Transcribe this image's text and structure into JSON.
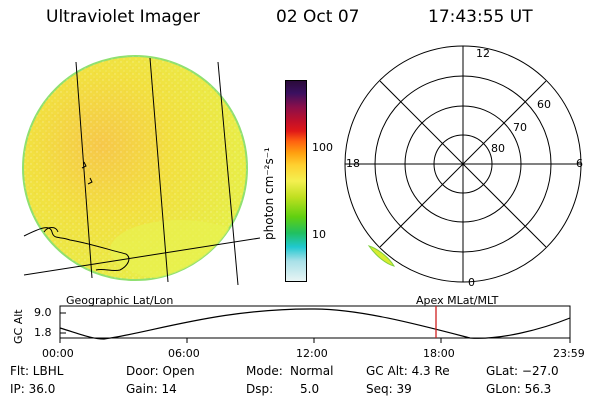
{
  "header": {
    "instrument": "Ultraviolet Imager",
    "date": "02 Oct 07",
    "time": "17:43:55 UT"
  },
  "left_panel": {
    "caption": "Geographic Lat/Lon"
  },
  "colorbar": {
    "unit_label": "photon cm⁻²s⁻¹",
    "ticks": [
      "100",
      "10"
    ],
    "colors": [
      "#2a0a3a",
      "#2a1050",
      "#6a0f4a",
      "#b0102a",
      "#e01010",
      "#ff6010",
      "#ff9a10",
      "#ffd030",
      "#f0f050",
      "#b0e020",
      "#60d010",
      "#20c060",
      "#20c8d0",
      "#a0e0e8",
      "#e0f0f0"
    ]
  },
  "polar_panel": {
    "caption": "Apex  MLat/MLT",
    "mlt_labels": {
      "top": "12",
      "left": "18",
      "right": "6",
      "bottom": "0"
    },
    "lat_labels": [
      "60",
      "70",
      "80"
    ]
  },
  "altitude_plot": {
    "ylabel": "GC Alt",
    "yticks": [
      "9.0",
      "1.8"
    ],
    "xticks": [
      "00:00",
      "06:00",
      "12:00",
      "18:00",
      "23:59"
    ],
    "marker_color": "#d02020"
  },
  "status": {
    "row1": {
      "filter": "Flt: LBHL",
      "door": "Door: Open",
      "mode_label": "Mode:",
      "mode_value": "Normal",
      "gc_alt": "GC Alt: 4.3 Re",
      "glat": "GLat: −27.0"
    },
    "row2": {
      "ip": "IP: 36.0",
      "gain": "Gain: 14",
      "dsp_label": "Dsp:",
      "dsp_value": "5.0",
      "seq": "Seq: 39",
      "glon": "GLon:  56.3"
    }
  }
}
